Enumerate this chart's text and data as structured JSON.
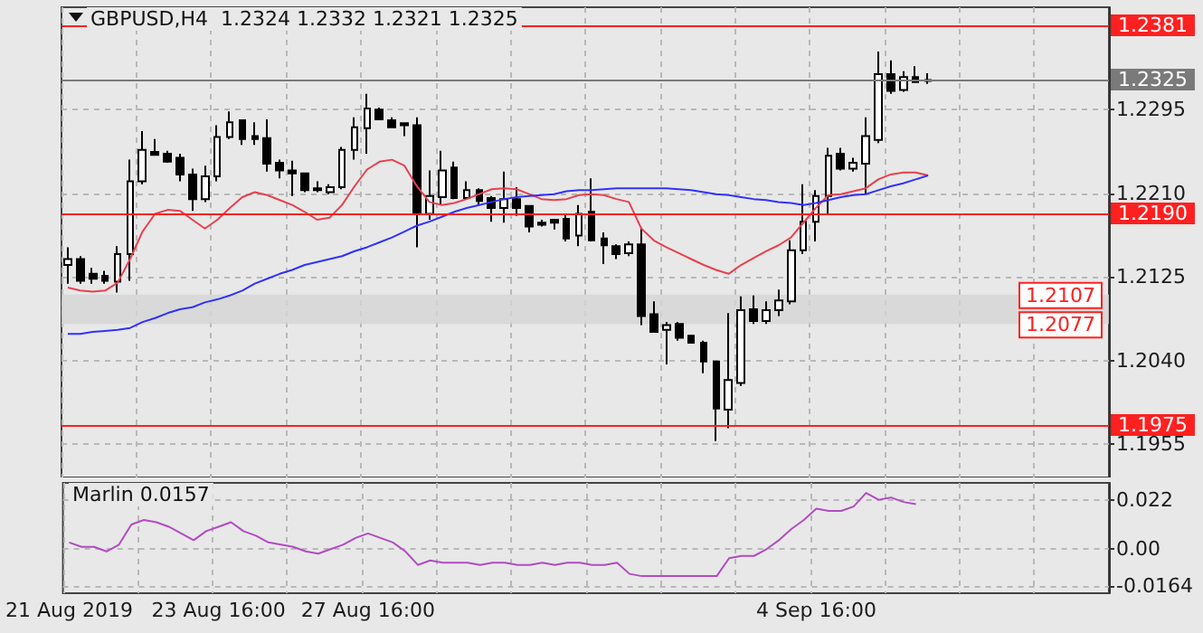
{
  "chart_data": [
    {
      "type": "candlestick",
      "title": "GBPUSD,H4  1.2324 1.2332 1.2321 1.2325",
      "categories": [
        null,
        null,
        null,
        null,
        null,
        null,
        null,
        null,
        null,
        null,
        null,
        null,
        null,
        null,
        null,
        null,
        null,
        null,
        null,
        null,
        null,
        null,
        null,
        null,
        null,
        null,
        null,
        null,
        null,
        null,
        null,
        null,
        null,
        null,
        null,
        null,
        null,
        null,
        null,
        null,
        null,
        null,
        null,
        null,
        null,
        null,
        null,
        null,
        null,
        null,
        null,
        null,
        null,
        null,
        null,
        null,
        null,
        null,
        null,
        null,
        null,
        null,
        null,
        null,
        null,
        null,
        null,
        null,
        null,
        null,
        null,
        null,
        null,
        null,
        null,
        null,
        null,
        null,
        null,
        null,
        null,
        null,
        null,
        null
      ],
      "ohlc": [
        [
          1.2137,
          1.2155,
          1.2118,
          1.2143
        ],
        [
          1.2143,
          1.2146,
          1.2118,
          1.2121
        ],
        [
          1.2128,
          1.2134,
          1.2118,
          1.2123
        ],
        [
          1.2126,
          1.2131,
          1.2118,
          1.2121
        ],
        [
          1.212,
          1.2156,
          1.2109,
          1.2148
        ],
        [
          1.2148,
          1.2244,
          1.2121,
          1.2222
        ],
        [
          1.2222,
          1.2273,
          1.2219,
          1.2254
        ],
        [
          1.2252,
          1.2265,
          1.2248,
          1.2249
        ],
        [
          1.225,
          1.2253,
          1.2241,
          1.2242
        ],
        [
          1.2246,
          1.225,
          1.2222,
          1.2229
        ],
        [
          1.2229,
          1.2235,
          1.2192,
          1.2204
        ],
        [
          1.2204,
          1.2238,
          1.2201,
          1.2227
        ],
        [
          1.2227,
          1.2279,
          1.2222,
          1.2267
        ],
        [
          1.2267,
          1.2293,
          1.2265,
          1.2282
        ],
        [
          1.2284,
          1.2285,
          1.2259,
          1.2265
        ],
        [
          1.2268,
          1.2282,
          1.2259,
          1.2265
        ],
        [
          1.2266,
          1.2285,
          1.2232,
          1.224
        ],
        [
          1.2241,
          1.2244,
          1.2225,
          1.2233
        ],
        [
          1.2233,
          1.2243,
          1.2207,
          1.223
        ],
        [
          1.223,
          1.223,
          1.2211,
          1.2213
        ],
        [
          1.2215,
          1.2222,
          1.2211,
          1.2213
        ],
        [
          1.2211,
          1.2219,
          1.2209,
          1.2216
        ],
        [
          1.2216,
          1.2257,
          1.2214,
          1.2254
        ],
        [
          1.2254,
          1.2287,
          1.2244,
          1.2277
        ],
        [
          1.2276,
          1.2311,
          1.225,
          1.2296
        ],
        [
          1.2295,
          1.2297,
          1.2284,
          1.2285
        ],
        [
          1.2284,
          1.2287,
          1.2276,
          1.2277
        ],
        [
          1.2281,
          1.2281,
          1.2268,
          1.2279
        ],
        [
          1.2279,
          1.2287,
          1.2155,
          1.2189
        ],
        [
          1.2189,
          1.2233,
          1.2183,
          1.2207
        ],
        [
          1.2206,
          1.2253,
          1.2198,
          1.2233
        ],
        [
          1.2236,
          1.2242,
          1.2204,
          1.2205
        ],
        [
          1.2205,
          1.2222,
          1.2204,
          1.2213
        ],
        [
          1.2213,
          1.2215,
          1.2198,
          1.2202
        ],
        [
          1.2205,
          1.2207,
          1.2181,
          1.2195
        ],
        [
          1.2195,
          1.2232,
          1.218,
          1.2204
        ],
        [
          1.2204,
          1.2216,
          1.2187,
          1.2195
        ],
        [
          1.2197,
          1.2198,
          1.217,
          1.2176
        ],
        [
          1.218,
          1.2183,
          1.2176,
          1.2178
        ],
        [
          1.2183,
          1.2184,
          1.2173,
          1.218
        ],
        [
          1.2184,
          1.2189,
          1.2161,
          1.2164
        ],
        [
          1.2167,
          1.2198,
          1.2156,
          1.2189
        ],
        [
          1.2191,
          1.2225,
          1.2161,
          1.2162
        ],
        [
          1.2164,
          1.217,
          1.2138,
          1.2157
        ],
        [
          1.2156,
          1.2158,
          1.2143,
          1.2148
        ],
        [
          1.2149,
          1.2161,
          1.2146,
          1.2158
        ],
        [
          1.2158,
          1.2175,
          1.2076,
          1.2085
        ],
        [
          1.2087,
          1.21,
          1.2068,
          1.2069
        ],
        [
          1.2071,
          1.2079,
          1.2036,
          1.2076
        ],
        [
          1.2077,
          1.2079,
          1.206,
          1.2063
        ],
        [
          1.2065,
          1.2066,
          1.2057,
          1.2058
        ],
        [
          1.2058,
          1.206,
          1.2027,
          1.2039
        ],
        [
          1.2039,
          1.2039,
          1.1958,
          1.1991
        ],
        [
          1.199,
          1.2088,
          1.1971,
          1.202
        ],
        [
          1.2017,
          1.2105,
          1.2014,
          1.2091
        ],
        [
          1.2092,
          1.2106,
          1.2077,
          1.208
        ],
        [
          1.208,
          1.21,
          1.2077,
          1.2091
        ],
        [
          1.2091,
          1.2112,
          1.2085,
          1.2101
        ],
        [
          1.21,
          1.2162,
          1.2097,
          1.2152
        ],
        [
          1.2152,
          1.2219,
          1.2148,
          1.2181
        ],
        [
          1.2181,
          1.2213,
          1.2161,
          1.2207
        ],
        [
          1.2207,
          1.2256,
          1.2188,
          1.2248
        ],
        [
          1.225,
          1.2256,
          1.2233,
          1.2235
        ],
        [
          1.2235,
          1.2246,
          1.2232,
          1.2241
        ],
        [
          1.224,
          1.2287,
          1.2209,
          1.2268
        ],
        [
          1.2264,
          1.2354,
          1.2261,
          1.2331
        ],
        [
          1.2331,
          1.2345,
          1.2311,
          1.2314
        ],
        [
          1.2315,
          1.2334,
          1.2313,
          1.2328
        ],
        [
          1.2328,
          1.2339,
          1.2322,
          1.2323
        ],
        [
          1.2324,
          1.2332,
          1.2321,
          1.2325
        ],
        null,
        null,
        null,
        null,
        null,
        null,
        null,
        null,
        null,
        null,
        null,
        null,
        null,
        null
      ],
      "series": [
        {
          "type": "line",
          "color": "#e8404f",
          "values": [
            1.2114,
            1.2111,
            1.211,
            1.2111,
            1.2119,
            1.2143,
            1.2171,
            1.2189,
            1.2193,
            1.2192,
            1.2183,
            1.2174,
            1.2183,
            1.2195,
            1.2206,
            1.2211,
            1.2208,
            1.2203,
            1.2198,
            1.2191,
            1.2183,
            1.2185,
            1.2198,
            1.2217,
            1.2234,
            1.2242,
            1.2244,
            1.2238,
            1.2217,
            1.2201,
            1.2198,
            1.22,
            1.2204,
            1.2209,
            1.2214,
            1.2215,
            1.2214,
            1.2209,
            1.2204,
            1.2203,
            1.2204,
            1.2208,
            1.2209,
            1.2208,
            1.2204,
            1.2201,
            1.2174,
            1.2162,
            1.2155,
            1.2149,
            1.2143,
            1.2137,
            1.2132,
            1.2128,
            1.2137,
            1.2144,
            1.2151,
            1.2157,
            1.2165,
            1.218,
            1.2195,
            1.2208,
            1.2209,
            1.2212,
            1.2215,
            1.2224,
            1.2229,
            1.2231,
            1.2231,
            1.2228,
            null,
            null,
            null,
            null,
            null,
            null,
            null,
            null,
            null,
            null,
            null,
            null,
            null,
            null
          ]
        },
        {
          "type": "line",
          "color": "#3030ff",
          "values": [
            1.2067,
            1.2067,
            1.2069,
            1.207,
            1.2071,
            1.2073,
            1.2079,
            1.2083,
            1.2088,
            1.2092,
            1.2094,
            1.2099,
            1.2102,
            1.2106,
            1.2111,
            1.2118,
            1.2123,
            1.2128,
            1.2132,
            1.2137,
            1.214,
            1.2143,
            1.2146,
            1.2151,
            1.2155,
            1.216,
            1.2165,
            1.2171,
            1.2177,
            1.2181,
            1.2186,
            1.2191,
            1.2195,
            1.2198,
            1.2201,
            1.2204,
            1.2206,
            1.2207,
            1.2208,
            1.2209,
            1.2212,
            1.2213,
            1.2213,
            1.2214,
            1.2215,
            1.2215,
            1.2215,
            1.2215,
            1.2215,
            1.2214,
            1.2213,
            1.2211,
            1.2209,
            1.2208,
            1.2206,
            1.2204,
            1.2203,
            1.2201,
            1.22,
            1.2198,
            1.22,
            1.2203,
            1.2206,
            1.2208,
            1.2209,
            1.2213,
            1.2217,
            1.222,
            1.2224,
            1.2228,
            null,
            null,
            null,
            null,
            null,
            null,
            null,
            null,
            null,
            null,
            null,
            null,
            null,
            null
          ]
        }
      ],
      "ylim": [
        1.1921,
        1.2399
      ],
      "yticks": [
        1.1955,
        {
          "value": 1.204,
          "label": "1.2040"
        },
        1.2125,
        {
          "value": 1.221,
          "label": "1.2210"
        },
        1.2295
      ],
      "ref_lines": [
        {
          "axis": "y",
          "value": 1.2381,
          "label": "1.2381",
          "color": "#ff2020"
        },
        {
          "axis": "y",
          "value": 1.2325,
          "label": "1.2325",
          "color": "#7a7a7a"
        },
        {
          "axis": "y",
          "value": 1.219,
          "label": "1.2190",
          "color": "#ff2020"
        },
        {
          "axis": "y",
          "value": 1.1975,
          "label": "1.1975",
          "color": "#ff2020"
        }
      ],
      "bands": [
        {
          "axis": "y",
          "from": 1.2077,
          "to": 1.2107,
          "color": "#d4d4d4"
        }
      ],
      "annotations": [
        {
          "text": "1.2107",
          "y": 1.2107
        },
        {
          "text": "1.2077",
          "y": 1.2077
        }
      ],
      "grid": true,
      "tick_labels": "y"
    },
    {
      "type": "line",
      "title": "Marlin 0.0157",
      "categories": [
        "21 Aug 2019",
        null,
        null,
        null,
        null,
        null,
        null,
        null,
        null,
        null,
        null,
        null,
        "23 Aug 16:00",
        null,
        null,
        null,
        null,
        null,
        null,
        null,
        null,
        null,
        null,
        null,
        "27 Aug 16:00",
        null,
        null,
        null,
        null,
        null,
        null,
        null,
        null,
        null,
        null,
        null,
        null,
        null,
        null,
        null,
        null,
        null,
        null,
        null,
        null,
        null,
        null,
        null,
        null,
        null,
        null,
        null,
        null,
        null,
        null,
        null,
        null,
        null,
        null,
        null,
        "4 Sep 16:00",
        null,
        null,
        null,
        null,
        null,
        null,
        null,
        null,
        null,
        null,
        null,
        null,
        null,
        null,
        null,
        null,
        null,
        null,
        null,
        null,
        null,
        null,
        null
      ],
      "series": [
        {
          "color": "#b04cc0",
          "values": [
            0.003,
            0.001,
            0.001,
            -0.001,
            0.002,
            0.011,
            0.013,
            0.012,
            0.01,
            0.007,
            0.004,
            0.008,
            0.01,
            0.012,
            0.008,
            0.006,
            0.003,
            0.002,
            0.001,
            -0.001,
            -0.002,
            0.0,
            0.002,
            0.005,
            0.007,
            0.005,
            0.003,
            -0.001,
            -0.007,
            -0.005,
            -0.006,
            -0.006,
            -0.006,
            -0.007,
            -0.006,
            -0.006,
            -0.007,
            -0.007,
            -0.006,
            -0.007,
            -0.006,
            -0.006,
            -0.007,
            -0.007,
            -0.006,
            -0.011,
            -0.012,
            -0.012,
            -0.012,
            -0.012,
            -0.012,
            -0.012,
            -0.012,
            -0.004,
            -0.003,
            -0.003,
            0.0,
            0.004,
            0.009,
            0.013,
            0.018,
            0.017,
            0.017,
            0.019,
            0.025,
            0.022,
            0.023,
            0.021,
            0.02,
            null,
            null,
            null,
            null,
            null,
            null,
            null,
            null,
            null,
            null,
            null,
            null,
            null,
            null,
            null
          ]
        }
      ],
      "ylim": [
        -0.0196,
        0.0295
      ],
      "yticks": [
        0.022,
        {
          "value": 0,
          "label": "0.00"
        },
        -0.0164
      ],
      "grid": true
    }
  ]
}
